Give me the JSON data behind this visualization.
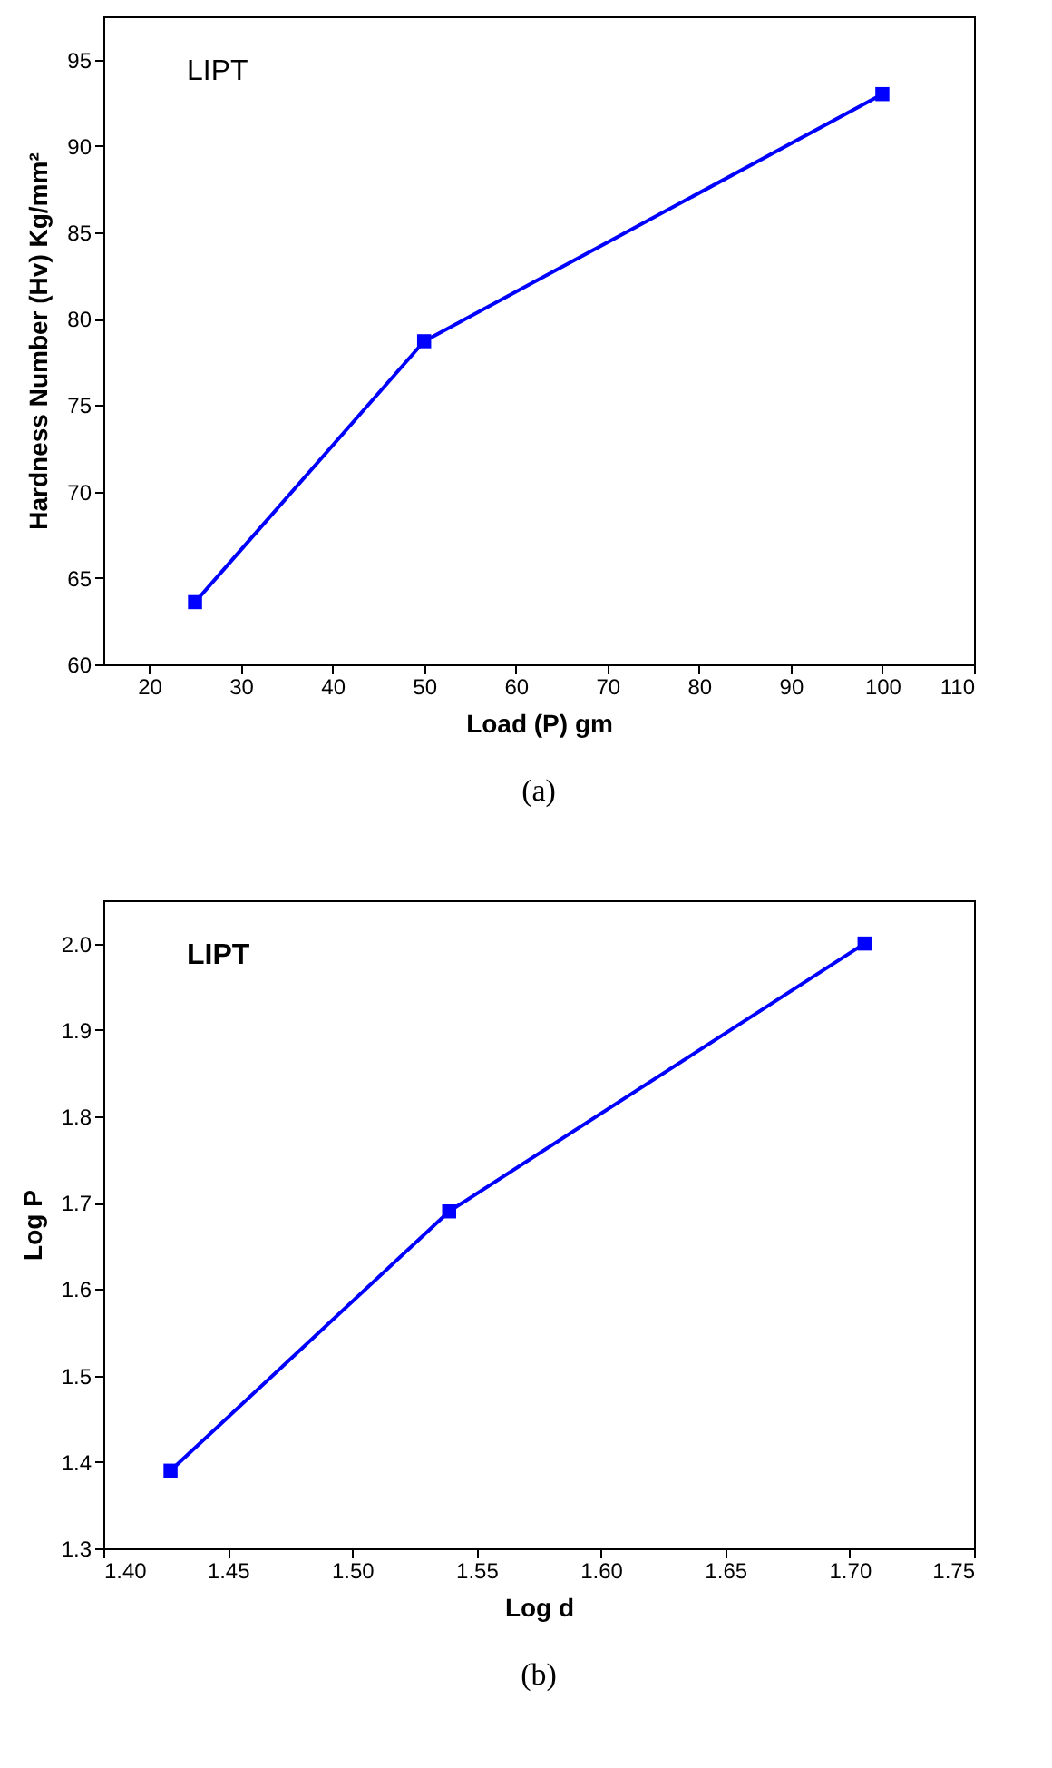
{
  "chart_data": [
    {
      "type": "line",
      "xlabel": "Load (P) gm",
      "ylabel": "Hardness Number (Hv) Kg/mm²",
      "annotations": [
        "LIPT",
        "(a)"
      ],
      "x": [
        25,
        50,
        100
      ],
      "series": [
        {
          "color": "#0000ff",
          "values": [
            63.6,
            78.7,
            93
          ]
        }
      ],
      "xlim": [
        15,
        110
      ],
      "xticks": [
        20,
        30,
        40,
        50,
        60,
        70,
        80,
        90,
        100,
        110
      ],
      "ylim": [
        60,
        97.5
      ],
      "yticks": [
        60,
        65,
        70,
        75,
        80,
        85,
        90,
        95
      ],
      "marker": "square",
      "line_style": "solid",
      "grid": false
    },
    {
      "type": "line",
      "xlabel": "Log d",
      "ylabel": "Log P",
      "annotations": [
        "LIPT",
        "(b)"
      ],
      "x": [
        1.427,
        1.539,
        1.706
      ],
      "series": [
        {
          "color": "#0000ff",
          "values": [
            1.39,
            1.69,
            2.0
          ]
        }
      ],
      "xlim": [
        1.4,
        1.75
      ],
      "xticks": [
        {
          "value": 1.4,
          "label": "1.40"
        },
        {
          "value": 1.45,
          "label": "1.45"
        },
        {
          "value": 1.5,
          "label": "1.50"
        },
        {
          "value": 1.55,
          "label": "1.55"
        },
        {
          "value": 1.6,
          "label": "1.60"
        },
        {
          "value": 1.65,
          "label": "1.65"
        },
        {
          "value": 1.7,
          "label": "1.70"
        },
        {
          "value": 1.75,
          "label": "1.75"
        }
      ],
      "ylim": [
        1.3,
        2.05
      ],
      "yticks": [
        {
          "value": 1.3,
          "label": "1.3"
        },
        {
          "value": 1.4,
          "label": "1.4"
        },
        {
          "value": 1.5,
          "label": "1.5"
        },
        {
          "value": 1.6,
          "label": "1.6"
        },
        {
          "value": 1.7,
          "label": "1.7"
        },
        {
          "value": 1.8,
          "label": "1.8"
        },
        {
          "value": 1.9,
          "label": "1.9"
        },
        {
          "value": 2.0,
          "label": "2.0"
        }
      ],
      "marker": "square",
      "line_style": "solid",
      "grid": false
    }
  ]
}
